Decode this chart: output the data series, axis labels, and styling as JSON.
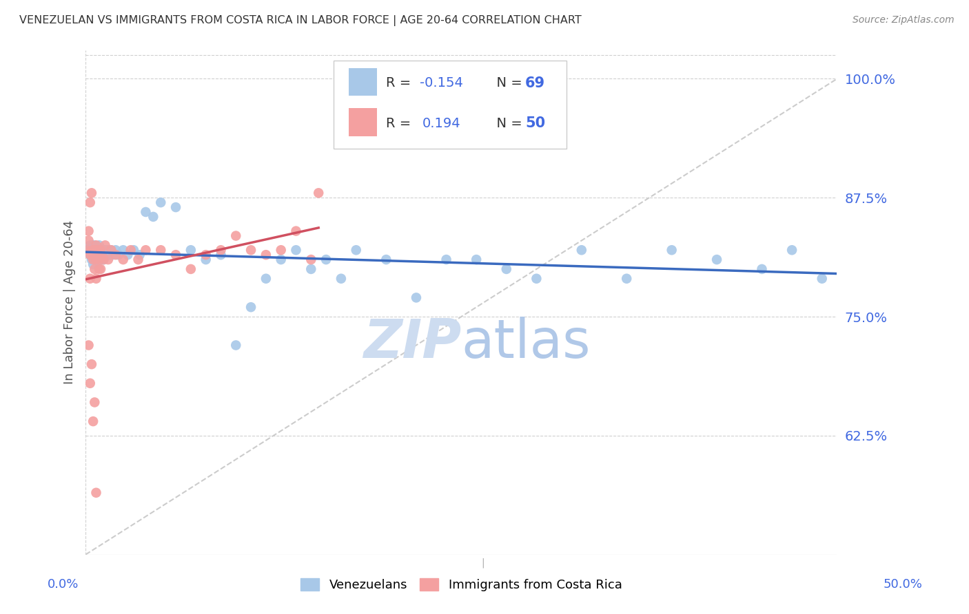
{
  "title": "VENEZUELAN VS IMMIGRANTS FROM COSTA RICA IN LABOR FORCE | AGE 20-64 CORRELATION CHART",
  "source": "Source: ZipAtlas.com",
  "ylabel": "In Labor Force | Age 20-64",
  "ytick_values": [
    0.625,
    0.75,
    0.875,
    1.0
  ],
  "xmin": 0.0,
  "xmax": 0.5,
  "ymin": 0.5,
  "ymax": 1.03,
  "blue_color": "#a8c8e8",
  "pink_color": "#f4a0a0",
  "trend_blue": "#3a6abf",
  "trend_pink": "#d05060",
  "ref_line_color": "#cccccc",
  "axis_label_color": "#4169e1",
  "watermark_color": "#cddcf0",
  "venezuelan_x": [
    0.002,
    0.003,
    0.003,
    0.004,
    0.004,
    0.005,
    0.005,
    0.005,
    0.006,
    0.006,
    0.006,
    0.007,
    0.007,
    0.007,
    0.007,
    0.008,
    0.008,
    0.008,
    0.009,
    0.009,
    0.009,
    0.01,
    0.01,
    0.01,
    0.011,
    0.011,
    0.012,
    0.012,
    0.013,
    0.014,
    0.015,
    0.016,
    0.017,
    0.018,
    0.02,
    0.022,
    0.025,
    0.028,
    0.032,
    0.036,
    0.04,
    0.045,
    0.05,
    0.06,
    0.07,
    0.08,
    0.09,
    0.1,
    0.11,
    0.12,
    0.13,
    0.14,
    0.15,
    0.16,
    0.17,
    0.18,
    0.2,
    0.22,
    0.24,
    0.26,
    0.28,
    0.3,
    0.33,
    0.36,
    0.39,
    0.42,
    0.45,
    0.47,
    0.49
  ],
  "venezuelan_y": [
    0.82,
    0.815,
    0.825,
    0.82,
    0.81,
    0.825,
    0.815,
    0.805,
    0.82,
    0.815,
    0.825,
    0.82,
    0.81,
    0.815,
    0.82,
    0.815,
    0.82,
    0.81,
    0.82,
    0.815,
    0.825,
    0.82,
    0.81,
    0.815,
    0.82,
    0.815,
    0.81,
    0.82,
    0.82,
    0.815,
    0.82,
    0.815,
    0.82,
    0.815,
    0.82,
    0.815,
    0.82,
    0.815,
    0.82,
    0.815,
    0.86,
    0.855,
    0.87,
    0.865,
    0.82,
    0.81,
    0.815,
    0.72,
    0.76,
    0.79,
    0.81,
    0.82,
    0.8,
    0.81,
    0.79,
    0.82,
    0.81,
    0.77,
    0.81,
    0.81,
    0.8,
    0.79,
    0.82,
    0.79,
    0.82,
    0.81,
    0.8,
    0.82,
    0.79
  ],
  "costarica_x": [
    0.001,
    0.002,
    0.002,
    0.003,
    0.003,
    0.003,
    0.004,
    0.004,
    0.005,
    0.005,
    0.005,
    0.006,
    0.006,
    0.007,
    0.007,
    0.007,
    0.008,
    0.008,
    0.009,
    0.009,
    0.01,
    0.01,
    0.011,
    0.012,
    0.013,
    0.015,
    0.017,
    0.02,
    0.025,
    0.03,
    0.035,
    0.04,
    0.05,
    0.06,
    0.07,
    0.08,
    0.09,
    0.1,
    0.11,
    0.12,
    0.13,
    0.14,
    0.15,
    0.155,
    0.002,
    0.003,
    0.004,
    0.005,
    0.006,
    0.007
  ],
  "costarica_y": [
    0.82,
    0.83,
    0.84,
    0.79,
    0.815,
    0.87,
    0.82,
    0.88,
    0.81,
    0.82,
    0.815,
    0.8,
    0.82,
    0.825,
    0.79,
    0.81,
    0.815,
    0.82,
    0.8,
    0.81,
    0.8,
    0.82,
    0.815,
    0.81,
    0.825,
    0.81,
    0.82,
    0.815,
    0.81,
    0.82,
    0.81,
    0.82,
    0.82,
    0.815,
    0.8,
    0.815,
    0.82,
    0.835,
    0.82,
    0.815,
    0.82,
    0.84,
    0.81,
    0.88,
    0.72,
    0.68,
    0.7,
    0.64,
    0.66,
    0.565
  ]
}
